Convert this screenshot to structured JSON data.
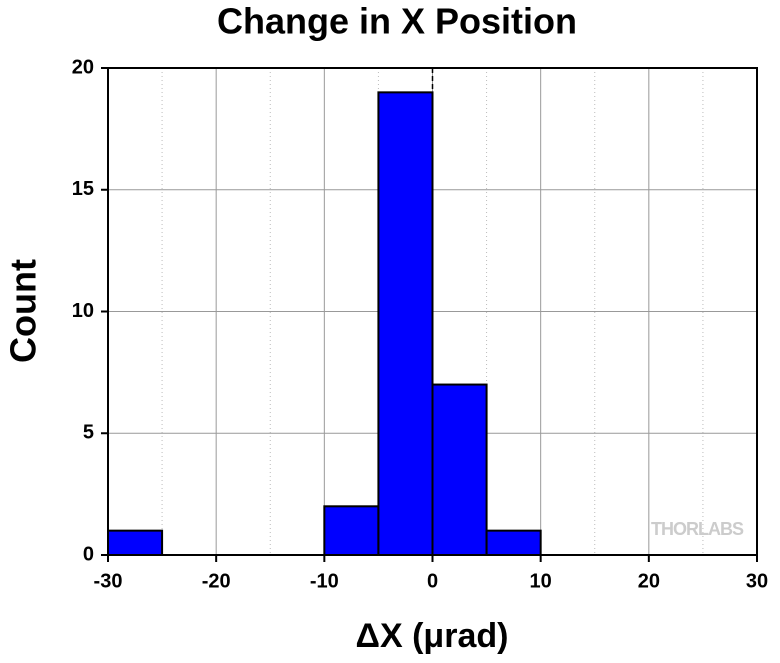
{
  "chart_data": {
    "type": "histogram",
    "title": "Change in X Position",
    "x_label": "ΔX (μrad)",
    "y_label": "Count",
    "bins": [
      -30,
      -25,
      -20,
      -15,
      -10,
      -5,
      0,
      5,
      10
    ],
    "counts": [
      1,
      0,
      0,
      0,
      2,
      19,
      7,
      1
    ],
    "color": "#0000ff",
    "xlim": [
      -30,
      30
    ],
    "xticks": [
      -30,
      -20,
      -10,
      0,
      10,
      20,
      30
    ],
    "ylim": [
      0,
      20
    ],
    "yticks": [
      0,
      5,
      10,
      15,
      20
    ],
    "grid": true,
    "reference_line_x": 0,
    "watermark": "THORLABS"
  }
}
